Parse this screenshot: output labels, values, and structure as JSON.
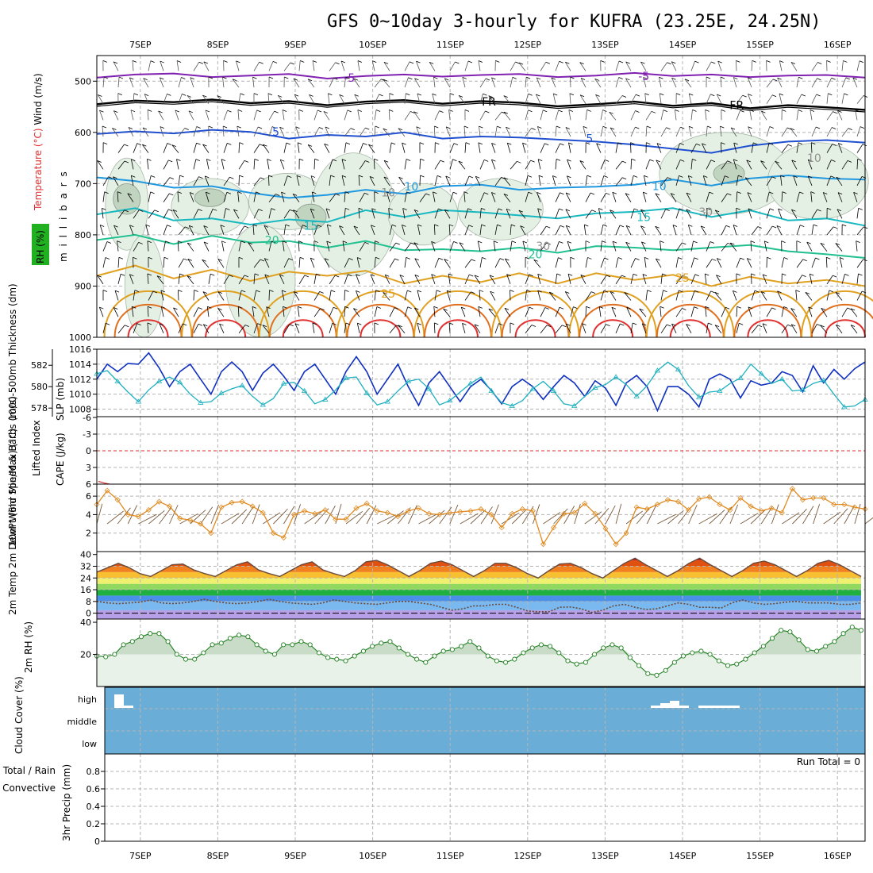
{
  "title": "GFS 0~10day 3-hourly for KUFRA (23.25E, 24.25N)",
  "colors": {
    "grid": "#b4b4b4",
    "rh_fill_light": "#e4f0e4",
    "rh_fill_dark": "#c0d4c0",
    "temp_neg5": "#8020b0",
    "temp_0": "#000000",
    "temp_5": "#2050d0",
    "temp_10": "#2098e0",
    "temp_15": "#18b8c0",
    "temp_20": "#20c090",
    "temp_25": "#e0a020",
    "temp_30": "#e07020",
    "temp_35": "#e03030",
    "slp": "#1030c0",
    "thickness": "#20b0c0",
    "cape": "#b060d0",
    "lifted": "#e03030",
    "wind10": "#e08a20",
    "cloud": "#6aaed8",
    "rh2m_fill": "#c8dcc8",
    "rh2m_line": "#208020",
    "precip_total": "#20a020",
    "precip_conv": "#e03030"
  },
  "chart_data": [
    {
      "type": "contour",
      "panel": "upper-air",
      "title": "Temperature / RH / Wind vs pressure",
      "ylabel_parts": [
        "Temperature",
        "(°C)",
        "Wind (m/s)"
      ],
      "ylabel_rh": "RH (%)",
      "yaxis_unit": "m i l l i b a r s",
      "y_ticks": [
        500,
        600,
        700,
        800,
        900,
        1000
      ],
      "ylim": [
        450,
        1000
      ],
      "x_labels": [
        "7SEP",
        "8SEP",
        "9SEP",
        "10SEP",
        "11SEP",
        "12SEP",
        "13SEP",
        "14SEP",
        "15SEP",
        "16SEP"
      ],
      "contour_labels": [
        "-5",
        "-5",
        "FR",
        "FR",
        "5",
        "5",
        "10",
        "10",
        "15",
        "15",
        "20",
        "20",
        "25",
        "25",
        "10",
        "10",
        "30",
        "30"
      ],
      "levels_mb": {
        "neg5": [
          493,
          487,
          485,
          492,
          489,
          486,
          495,
          490,
          487,
          491,
          488,
          486,
          492,
          489,
          484,
          490,
          487,
          492,
          489,
          488,
          493
        ],
        "zero": [
          545,
          538,
          541,
          536,
          543,
          539,
          547,
          540,
          537,
          544,
          539,
          542,
          549,
          545,
          540,
          548,
          543,
          553,
          547,
          551,
          556
        ],
        "five": [
          603,
          598,
          602,
          595,
          599,
          612,
          605,
          608,
          600,
          612,
          608,
          610,
          614,
          618,
          624,
          632,
          640,
          626,
          618,
          615,
          620
        ],
        "ten": [
          688,
          695,
          708,
          705,
          718,
          728,
          722,
          712,
          720,
          705,
          702,
          712,
          708,
          706,
          702,
          692,
          704,
          690,
          684,
          690,
          692
        ],
        "fifteen": [
          760,
          748,
          772,
          768,
          780,
          770,
          775,
          752,
          765,
          752,
          756,
          762,
          768,
          758,
          755,
          748,
          765,
          752,
          772,
          768,
          782
        ],
        "twenty": [
          810,
          800,
          818,
          802,
          815,
          812,
          825,
          812,
          830,
          828,
          832,
          825,
          835,
          822,
          825,
          830,
          825,
          820,
          832,
          838,
          845
        ],
        "twentyfive": [
          880,
          860,
          885,
          868,
          890,
          872,
          880,
          870,
          895,
          880,
          892,
          875,
          895,
          875,
          888,
          878,
          900,
          882,
          895,
          888,
          900
        ]
      },
      "afternoon_peaks_day": [
        0.6,
        1.6,
        2.6,
        3.6,
        4.6,
        5.6,
        6.6,
        7.6,
        8.6,
        9.6
      ]
    },
    {
      "type": "line",
      "panel": "slp-thickness",
      "ylabel_left": "1000-500mb Thickness (dm)",
      "ylabel_right": "SLP (mb)",
      "ticks_slp": [
        1016,
        1014,
        1012,
        1010,
        1008
      ],
      "ticks_thick": [
        582,
        580,
        578
      ],
      "series": [
        {
          "name": "SLP (mb)",
          "values": [
            1012.0,
            1014.0,
            1013.0,
            1014.1,
            1014.0,
            1015.5,
            1013.5,
            1011.0,
            1013.0,
            1014.0,
            1012.0,
            1010.0,
            1013.0,
            1014.3,
            1013.0,
            1010.5,
            1012.8,
            1014.0,
            1012.4,
            1010.5,
            1013.0,
            1014.0,
            1012.0,
            1010.0,
            1013.0,
            1015.0,
            1013.0,
            1010.0,
            1012.0,
            1014.0,
            1011.0,
            1008.5,
            1011.5,
            1013.0,
            1011.0,
            1009.0,
            1011.0,
            1012.0,
            1010.5,
            1008.7,
            1011.0,
            1012.0,
            1011.0,
            1009.3,
            1011.0,
            1012.5,
            1011.5,
            1009.7,
            1011.8,
            1010.8,
            1008.5,
            1011.5,
            1012.5,
            1011.0,
            1007.8,
            1011.0,
            1011.0,
            1010.0,
            1008.3,
            1012.0,
            1012.7,
            1012.0,
            1009.5,
            1011.8,
            1011.2,
            1011.5,
            1013.0,
            1012.5,
            1010.3,
            1013.8,
            1011.5,
            1013.3,
            1012.0,
            1013.4,
            1014.3
          ]
        },
        {
          "name": "Thickness (dm)",
          "values": [
            581.2,
            581.5,
            580.5,
            579.5,
            578.6,
            579.7,
            580.5,
            580.9,
            580.4,
            579.3,
            578.5,
            578.6,
            579.4,
            579.8,
            580.1,
            579.1,
            578.3,
            578.9,
            580.3,
            580.4,
            579.6,
            578.4,
            578.8,
            579.7,
            580.8,
            580.9,
            579.4,
            578.3,
            578.6,
            579.6,
            580.5,
            580.7,
            579.8,
            578.3,
            578.7,
            579.5,
            580.3,
            580.9,
            579.6,
            578.5,
            578.2,
            578.7,
            579.8,
            580.5,
            579.6,
            578.4,
            578.2,
            579.1,
            579.9,
            580.2,
            580.9,
            580.2,
            579.1,
            580.1,
            581.5,
            582.3,
            581.6,
            580.1,
            579.0,
            579.5,
            579.6,
            580.3,
            580.8,
            582.1,
            581.2,
            580.3,
            580.7,
            579.6,
            579.7,
            580.3,
            580.6,
            579.3,
            578.1,
            578.2,
            578.8
          ]
        }
      ]
    },
    {
      "type": "line",
      "panel": "cape-li",
      "ylabel_left": "Lifted Index",
      "ylabel_right": "CAPE (J/kg)",
      "ticks": [
        "-6",
        "-3",
        "0",
        "3",
        "6"
      ],
      "series": [
        {
          "name": "Lifted Index",
          "values": [
            5.5,
            5.8,
            6.0
          ]
        }
      ]
    },
    {
      "type": "line",
      "panel": "wind10m",
      "ylabel": "10m Wind Speed & Barbs (m/s)",
      "ticks": [
        6,
        4,
        2
      ],
      "series": [
        {
          "name": "10m wind speed (m/s)",
          "values": [
            5.1,
            6.6,
            5.6,
            4.0,
            3.8,
            4.5,
            5.4,
            4.9,
            3.6,
            3.4,
            3.0,
            2.0,
            4.8,
            5.3,
            5.4,
            4.9,
            4.2,
            2.0,
            1.5,
            4.0,
            4.4,
            4.1,
            4.5,
            3.5,
            3.5,
            4.7,
            5.2,
            4.4,
            4.2,
            3.8,
            4.4,
            4.7,
            4.1,
            4.0,
            4.2,
            4.3,
            4.4,
            4.6,
            4.0,
            2.6,
            4.1,
            4.6,
            4.4,
            0.8,
            2.6,
            4.1,
            4.2,
            5.2,
            4.1,
            2.5,
            0.8,
            2.0,
            4.8,
            4.6,
            5.1,
            5.6,
            5.4,
            4.5,
            5.7,
            5.9,
            5.1,
            4.5,
            5.8,
            4.9,
            4.4,
            4.7,
            4.2,
            6.8,
            5.6,
            5.8,
            5.8,
            5.1,
            5.1,
            4.8,
            4.6
          ]
        }
      ]
    },
    {
      "type": "area",
      "panel": "temp2m",
      "ylabel": "2m Temp 2m DewPt (6hr Min/Max) (°C)",
      "ticks": [
        40,
        32,
        24,
        16,
        8,
        0
      ],
      "series": [
        {
          "name": "2m Temp (°C)",
          "values": [
            28,
            31,
            34,
            31,
            27,
            25,
            29,
            33,
            33.5,
            29.5,
            27,
            25,
            29,
            33,
            35,
            29.5,
            27,
            25,
            29,
            33,
            35,
            29.5,
            27,
            25,
            29,
            35,
            36,
            33,
            29,
            25,
            29,
            34,
            35.5,
            33,
            29,
            25,
            29,
            34,
            34,
            31,
            27,
            24,
            29,
            33.5,
            34,
            31,
            27,
            24,
            29,
            34,
            37.5,
            33,
            29,
            25,
            29,
            34,
            37.5,
            33,
            29,
            25,
            29,
            34,
            35.5,
            33,
            29,
            25,
            29,
            34,
            36,
            33,
            29,
            25
          ]
        },
        {
          "name": "2m DewPt (°C)",
          "values": [
            8,
            7,
            6.5,
            7,
            7.5,
            9,
            7,
            6.5,
            7,
            8,
            9.5,
            8,
            7,
            6.5,
            7,
            8,
            9.5,
            8,
            7,
            6.5,
            6,
            7,
            9,
            8,
            7,
            6.5,
            6,
            7,
            8,
            8,
            7,
            6,
            4,
            2,
            3,
            5,
            5,
            6,
            6,
            4,
            1.5,
            1,
            1,
            4,
            4.2,
            3,
            0.5,
            2,
            5,
            6,
            4,
            2.5,
            3,
            5,
            7,
            6,
            4,
            4,
            3.5,
            7,
            9,
            7,
            6,
            6.5,
            7.5,
            8,
            7,
            7,
            7,
            6,
            6,
            7
          ]
        }
      ]
    },
    {
      "type": "area",
      "panel": "rh2m",
      "ylabel": "2m RH (%)",
      "ticks": [
        40,
        20
      ],
      "series": [
        {
          "name": "2m RH (%)",
          "values": [
            19,
            18.5,
            20,
            26,
            28,
            31,
            33,
            33,
            28,
            20,
            17,
            17,
            21,
            26,
            27,
            30,
            32,
            31,
            26,
            22,
            20,
            26,
            26,
            28,
            26,
            21,
            18,
            17,
            16,
            19,
            22,
            25,
            27,
            28,
            24,
            20,
            17,
            15,
            19,
            22,
            23,
            25,
            28,
            24,
            19,
            16,
            15,
            17,
            21,
            24,
            26,
            25,
            21,
            16,
            14,
            15,
            20,
            24,
            26,
            24,
            18,
            13,
            8,
            7,
            10,
            15,
            19,
            21,
            22,
            20,
            16,
            13,
            14,
            17,
            21,
            25,
            30,
            35,
            34,
            29,
            23,
            22,
            25,
            28,
            33,
            37,
            35
          ]
        }
      ]
    },
    {
      "type": "bar",
      "panel": "cloud",
      "ylabel": "Cloud Cover (%)",
      "levels": [
        "high",
        "middle",
        "low"
      ],
      "note": "high cloud near start and around 14SEP"
    },
    {
      "type": "bar",
      "panel": "precip",
      "ylabel_total": "Total / Rain",
      "ylabel_conv": "Convective",
      "ylabel_unit": "3hr Precip (mm)",
      "ticks": [
        "0.8",
        "0.6",
        "0.4",
        "0.2",
        "0"
      ],
      "run_total": "Run Total = 0",
      "values": []
    }
  ]
}
